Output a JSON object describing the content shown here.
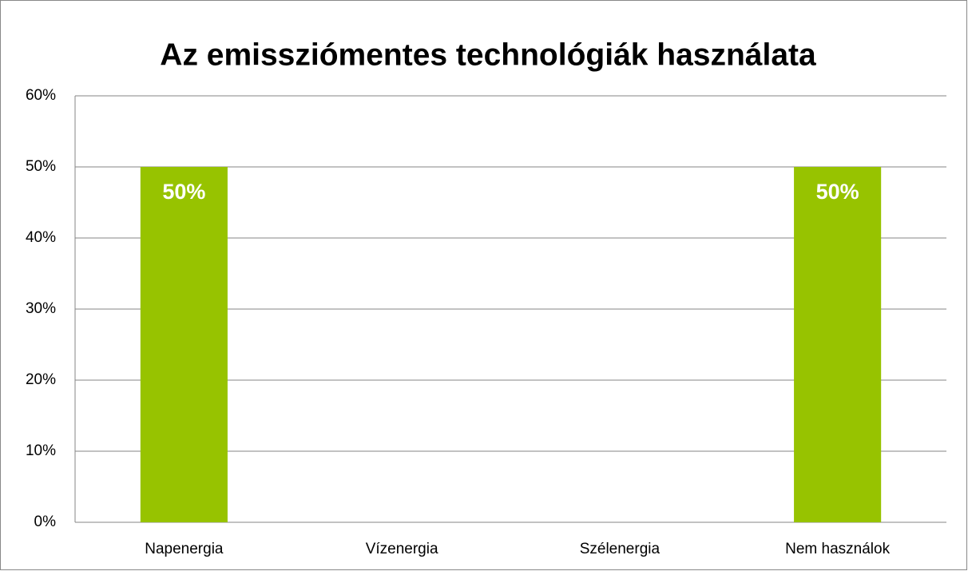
{
  "chart_data": {
    "type": "bar",
    "title": "Az emissziómentes technológiák használata",
    "categories": [
      "Napenergia",
      "Vízenergia",
      "Szélenergia",
      "Nem használok"
    ],
    "values": [
      50,
      0,
      0,
      50
    ],
    "value_labels": [
      "50%",
      null,
      null,
      "50%"
    ],
    "color": "#97c300",
    "ylim": [
      0,
      60
    ],
    "yticks": [
      {
        "value": 0,
        "label": "0%"
      },
      {
        "value": 10,
        "label": "10%"
      },
      {
        "value": 20,
        "label": "20%"
      },
      {
        "value": 30,
        "label": "30%"
      },
      {
        "value": 40,
        "label": "40%"
      },
      {
        "value": 50,
        "label": "50%"
      },
      {
        "value": 60,
        "label": "60%"
      }
    ],
    "grid": true
  }
}
